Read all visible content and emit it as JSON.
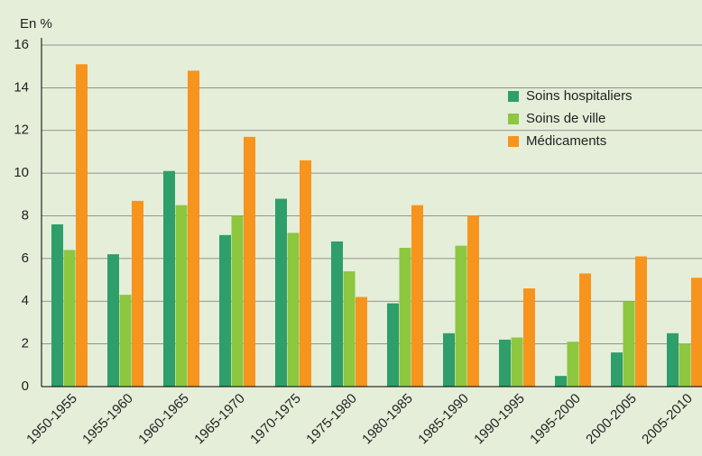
{
  "chart_data": {
    "type": "bar",
    "y_label": "En %",
    "categories": [
      "1950-1955",
      "1955-1960",
      "1960-1965",
      "1965-1970",
      "1970-1975",
      "1975-1980",
      "1980-1985",
      "1985-1990",
      "1990-1995",
      "1995-2000",
      "2000-2005",
      "2005-2010"
    ],
    "series": [
      {
        "name": "Soins hospitaliers",
        "color": "#2e9e6b",
        "values": [
          7.6,
          6.2,
          10.1,
          7.1,
          8.8,
          6.8,
          3.9,
          2.5,
          2.2,
          0.5,
          1.6,
          2.5
        ]
      },
      {
        "name": "Soins de ville",
        "color": "#8dc63f",
        "values": [
          6.4,
          4.3,
          8.5,
          8.0,
          7.2,
          5.4,
          6.5,
          6.6,
          2.3,
          2.1,
          4.0,
          2.0
        ]
      },
      {
        "name": "Médicaments",
        "color": "#f7941d",
        "values": [
          15.1,
          8.7,
          14.8,
          11.7,
          10.6,
          4.2,
          8.5,
          8.0,
          4.6,
          5.3,
          6.1,
          5.1
        ]
      }
    ],
    "ylim": [
      0,
      16
    ],
    "yticks": [
      0,
      2,
      4,
      6,
      8,
      10,
      12,
      14,
      16
    ],
    "grid": true,
    "legend": "upper right"
  }
}
